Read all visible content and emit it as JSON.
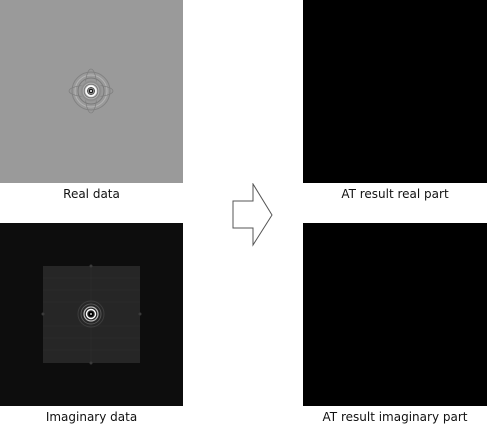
{
  "panels": {
    "real_data": {
      "caption": "Real data"
    },
    "imaginary_data": {
      "caption": "Imaginary data"
    },
    "at_real": {
      "caption": "AT result real part"
    },
    "at_imaginary": {
      "caption": "AT result imaginary part"
    }
  },
  "colors": {
    "real_background": "#9a9a9a",
    "imaginary_background": "#0d0d0d",
    "imaginary_square": "#262626",
    "result_background": "#000000",
    "arrow_fill": "#ffffff",
    "arrow_stroke": "#555555"
  },
  "arrow": {
    "icon": "right-arrow-icon"
  }
}
